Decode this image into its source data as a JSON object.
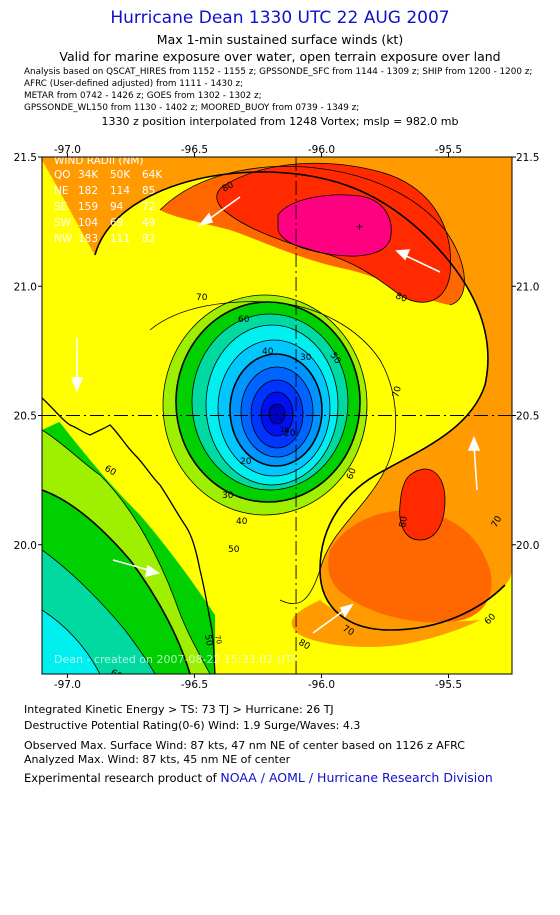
{
  "header": {
    "title": "Hurricane Dean 1330 UTC 22 AUG 2007",
    "subtitle1": "Max 1-min sustained surface winds (kt)",
    "subtitle2": "Valid for marine exposure over water, open terrain exposure over land",
    "analysis_lines": [
      "Analysis based on  QSCAT_HIRES from 1152 - 1155 z;  GPSSONDE_SFC from 1144 - 1309 z;  SHIP from 1200 - 1200 z;",
      "AFRC (User-defined adjusted) from 1111 - 1430 z;",
      "METAR from 0742 - 1426 z;  GOES from 1302 - 1302 z;",
      "GPSSONDE_WL150 from 1130 - 1402 z;  MOORED_BUOY from 0739 - 1349 z;"
    ],
    "position_line": "1330 z position interpolated from 1248 Vortex; mslp = 982.0 mb"
  },
  "map": {
    "lon_labels": [
      "-97.0",
      "-96.5",
      "-96.0",
      "-95.5"
    ],
    "lat_labels": [
      "21.5",
      "21.0",
      "20.5",
      "20.0"
    ],
    "lon_range": [
      -97.1,
      -95.25
    ],
    "lat_range": [
      19.5,
      21.5
    ],
    "center": {
      "lon": -96.1,
      "lat": 20.5
    },
    "max_wind_marker": {
      "lon": -95.85,
      "lat": 21.23
    },
    "contour_labels": [
      "80",
      "80",
      "80",
      "80",
      "70",
      "70",
      "70",
      "70",
      "60",
      "60",
      "60",
      "60",
      "50",
      "50",
      "50",
      "40",
      "40",
      "30",
      "30",
      "20",
      "20",
      "10",
      "60",
      "70"
    ],
    "radii_table": {
      "header": "WIND RADII (NM)",
      "columns": [
        "QO",
        "34K",
        "50K",
        "64K"
      ],
      "rows": [
        [
          "NE",
          "182",
          "114",
          "85"
        ],
        [
          "SE",
          "159",
          "94",
          "72"
        ],
        [
          "SW",
          "104",
          "69",
          "49"
        ],
        [
          "NW",
          "183",
          "111",
          "82"
        ]
      ]
    },
    "watermark": "Dean - created on 2007-08-22 15:33:02 UTC",
    "colors": {
      "cyan": "#00f0f0",
      "teal": "#00d9a0",
      "green": "#00d000",
      "lime": "#9ef000",
      "yellow": "#ffff00",
      "orange": "#ff9a00",
      "dark_orange": "#ff6800",
      "red": "#ff2a00",
      "magenta": "#ff0080",
      "core_blue": "#0000e0"
    }
  },
  "footer": {
    "line1": "Integrated Kinetic Energy > TS: 73 TJ   > Hurricane: 26 TJ",
    "line2": "Destructive Potential Rating(0-6)   Wind: 1.9 Surge/Waves: 4.3",
    "line3": "Observed Max. Surface Wind: 87 kts, 47 nm NE of center based on 1126 z AFRC",
    "line4": "Analyzed Max. Wind: 87 kts, 45 nm NE of center",
    "line5_prefix": "Experimental research product of ",
    "line5_org": "NOAA / AOML / Hurricane Research Division"
  }
}
